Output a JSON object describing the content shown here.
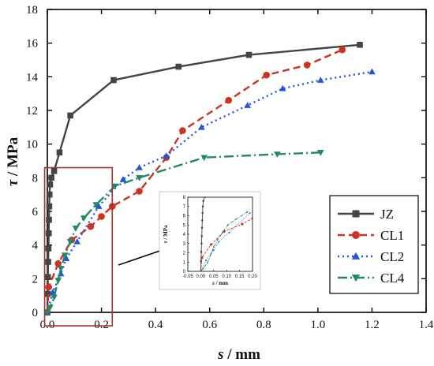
{
  "chart_data": {
    "type": "line",
    "xlabel": {
      "var": "s",
      "unit": " / mm"
    },
    "ylabel": {
      "var": "τ",
      "unit": " / MPa"
    },
    "xlim": [
      0,
      1.4
    ],
    "ylim": [
      0,
      18
    ],
    "xticks": [
      "0.0",
      "0.2",
      "0.4",
      "0.6",
      "0.8",
      "1.0",
      "1.2",
      "1.4"
    ],
    "yticks": [
      "0",
      "2",
      "4",
      "6",
      "8",
      "10",
      "12",
      "14",
      "16",
      "18"
    ],
    "grid": false,
    "legend_position": "bottom-right",
    "series": [
      {
        "name": "JZ",
        "color": "#444444",
        "marker": "square",
        "dash": "solid",
        "x": [
          0.0,
          0.001,
          0.002,
          0.003,
          0.004,
          0.005,
          0.006,
          0.007,
          0.008,
          0.01,
          0.015,
          0.025,
          0.045,
          0.085,
          0.245,
          0.485,
          0.745,
          1.155
        ],
        "y": [
          0.0,
          1.1,
          2.1,
          3.0,
          3.8,
          4.7,
          5.5,
          6.3,
          7.0,
          7.6,
          8.0,
          8.4,
          9.5,
          11.7,
          13.8,
          14.6,
          15.3,
          15.9
        ]
      },
      {
        "name": "CL1",
        "color": "#cc3322",
        "marker": "circle",
        "dash": "9,5",
        "x": [
          0.0,
          0.005,
          0.04,
          0.09,
          0.16,
          0.2,
          0.24,
          0.34,
          0.44,
          0.5,
          0.67,
          0.81,
          0.96,
          1.09
        ],
        "y": [
          0.0,
          1.5,
          2.9,
          4.3,
          5.1,
          5.7,
          6.3,
          7.2,
          9.2,
          10.8,
          12.6,
          14.1,
          14.7,
          15.6
        ]
      },
      {
        "name": "CL2",
        "color": "#2255dd",
        "marker": "triangle-up",
        "dash": "2,4",
        "x": [
          0.0,
          0.02,
          0.05,
          0.07,
          0.11,
          0.19,
          0.28,
          0.34,
          0.44,
          0.57,
          0.74,
          0.87,
          1.01,
          1.2
        ],
        "y": [
          0.0,
          1.2,
          2.3,
          3.2,
          4.2,
          6.3,
          7.9,
          8.6,
          9.3,
          11.0,
          12.3,
          13.3,
          13.8,
          14.3
        ]
      },
      {
        "name": "CL4",
        "color": "#228866",
        "marker": "triangle-down",
        "dash": "12,4,2,4",
        "x": [
          0.0,
          0.01,
          0.025,
          0.04,
          0.05,
          0.065,
          0.085,
          0.105,
          0.135,
          0.18,
          0.25,
          0.34,
          0.58,
          0.85,
          1.01
        ],
        "y": [
          0.0,
          0.3,
          0.9,
          1.9,
          2.6,
          3.4,
          4.2,
          5.0,
          5.6,
          6.4,
          7.5,
          8.0,
          9.2,
          9.4,
          9.5
        ]
      }
    ],
    "highlight_box": {
      "x_range": [
        -0.01,
        0.24
      ],
      "y_range": [
        -0.8,
        8.6
      ],
      "color": "#a0332a"
    },
    "inset": {
      "xlim": [
        -0.05,
        0.2
      ],
      "ylim": [
        0,
        8
      ],
      "xticks": [
        "-0.05",
        "0.00",
        "0.05",
        "0.10",
        "0.15",
        "0.20"
      ],
      "yticks": [
        "0",
        "1",
        "2",
        "3",
        "4",
        "5",
        "6",
        "7",
        "8"
      ]
    }
  }
}
